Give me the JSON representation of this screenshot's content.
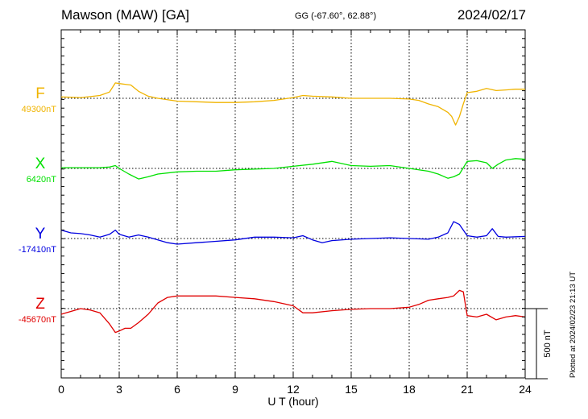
{
  "header": {
    "station": "Mawson (MAW)  [GA]",
    "coords": "GG (-67.60°,  62.88°)",
    "date": "2024/02/17"
  },
  "footer": {
    "plotted": "Plotted at 2024/02/23 21:13 UT"
  },
  "chart_data": {
    "type": "line",
    "xlabel": "U T (hour)",
    "xlim": [
      0,
      24
    ],
    "x_ticks": [
      0,
      3,
      6,
      9,
      12,
      15,
      18,
      21,
      24
    ],
    "scale_bar_label": "500 nT",
    "scale_bar_nT": 500,
    "grid": "dotted",
    "series": [
      {
        "name": "F",
        "baseline_label": "49300nT",
        "baseline_nT": 49300,
        "color": "#f0b400",
        "x": [
          0,
          0.5,
          1,
          1.5,
          2,
          2.5,
          2.8,
          3,
          3.3,
          3.6,
          4,
          4.5,
          5,
          6,
          7,
          8,
          9,
          10,
          11,
          12,
          12.5,
          13,
          14,
          15,
          16,
          17,
          18,
          18.5,
          19,
          19.5,
          20,
          20.2,
          20.4,
          20.6,
          20.8,
          21,
          21.5,
          22,
          22.5,
          23,
          23.5,
          24
        ],
        "y": [
          10,
          8,
          5,
          12,
          20,
          45,
          110,
          105,
          100,
          95,
          50,
          15,
          0,
          -20,
          -25,
          -30,
          -30,
          -25,
          -15,
          5,
          20,
          15,
          10,
          0,
          0,
          0,
          -5,
          -15,
          -40,
          -60,
          -100,
          -130,
          -190,
          -130,
          -40,
          40,
          50,
          70,
          55,
          60,
          65,
          65
        ]
      },
      {
        "name": "X",
        "baseline_label": "6420nT",
        "baseline_nT": 6420,
        "color": "#00e000",
        "x": [
          0,
          1,
          2,
          2.5,
          2.8,
          3,
          3.5,
          4,
          4.5,
          5,
          6,
          7,
          8,
          9,
          10,
          11,
          12,
          13,
          14,
          15,
          16,
          17,
          18,
          19,
          19.5,
          20,
          20.3,
          20.6,
          21,
          21.5,
          22,
          22.3,
          22.6,
          23,
          23.5,
          24
        ],
        "y": [
          5,
          5,
          5,
          10,
          20,
          0,
          -40,
          -75,
          -60,
          -40,
          -25,
          -20,
          -20,
          -10,
          -5,
          0,
          15,
          30,
          50,
          20,
          15,
          20,
          0,
          -20,
          -40,
          -70,
          -60,
          -40,
          50,
          55,
          40,
          0,
          30,
          60,
          70,
          65
        ]
      },
      {
        "name": "Y",
        "baseline_label": "-17410nT",
        "baseline_nT": -17410,
        "color": "#0000e0",
        "x": [
          0,
          0.5,
          1,
          1.5,
          2,
          2.5,
          2.8,
          3,
          3.5,
          4,
          4.5,
          5,
          5.5,
          6,
          7,
          8,
          9,
          10,
          11,
          12,
          12.5,
          13,
          13.5,
          14,
          15,
          16,
          17,
          18,
          19,
          19.5,
          20,
          20.3,
          20.6,
          21,
          21.5,
          22,
          22.3,
          22.6,
          23,
          24
        ],
        "y": [
          60,
          40,
          35,
          25,
          10,
          30,
          60,
          30,
          10,
          25,
          10,
          -10,
          -30,
          -40,
          -30,
          -20,
          -10,
          10,
          10,
          5,
          20,
          -10,
          -30,
          -15,
          -5,
          0,
          5,
          0,
          -5,
          10,
          40,
          120,
          100,
          20,
          10,
          20,
          70,
          15,
          10,
          15
        ]
      },
      {
        "name": "Z",
        "baseline_label": "-45670nT",
        "baseline_nT": -45670,
        "color": "#e00000",
        "x": [
          0,
          0.5,
          1,
          1.5,
          2,
          2.5,
          2.8,
          3,
          3.3,
          3.6,
          4,
          4.5,
          5,
          5.5,
          6,
          7,
          8,
          9,
          10,
          11,
          12,
          12.5,
          13,
          14,
          15,
          16,
          17,
          18,
          18.5,
          19,
          19.5,
          20,
          20.3,
          20.6,
          20.8,
          21,
          21.5,
          22,
          22.5,
          23,
          23.5,
          24
        ],
        "y": [
          -40,
          -20,
          0,
          -10,
          -30,
          -110,
          -170,
          -160,
          -140,
          -140,
          -100,
          -40,
          40,
          80,
          90,
          90,
          90,
          80,
          70,
          50,
          20,
          -30,
          -30,
          -15,
          -5,
          0,
          0,
          10,
          30,
          60,
          70,
          80,
          90,
          130,
          120,
          -50,
          -60,
          -40,
          -80,
          -60,
          -50,
          -60
        ]
      }
    ]
  }
}
